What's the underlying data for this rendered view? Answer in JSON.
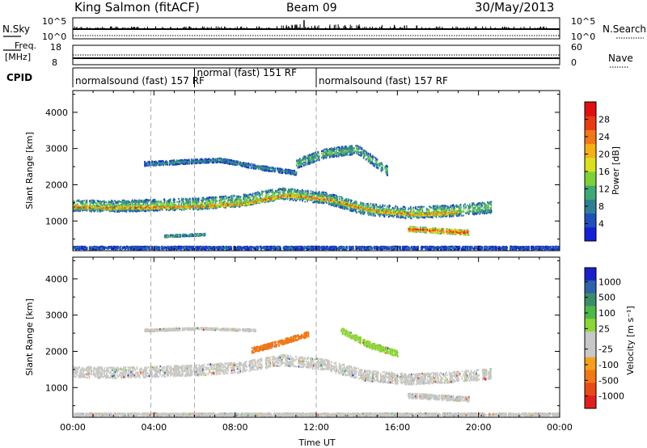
{
  "header": {
    "station": "King Salmon (fitACF)",
    "beam": "Beam 09",
    "date": "30/May/2013"
  },
  "status_panels": {
    "nsky_label": "N.Sky",
    "nsky_ticks": [
      "10^5",
      "10^0"
    ],
    "nsky_right_ticks": [
      "10^5",
      "10^0"
    ],
    "nsearch_label": "N.Search",
    "freq_label_1": "Freq.",
    "freq_label_2": "[MHz]",
    "freq_ticks": [
      "18",
      "8"
    ],
    "nave_ticks": [
      "60",
      "0"
    ],
    "nave_label": "Nave",
    "cpid_label": "CPID",
    "cpid_segments": [
      {
        "start": 0.0,
        "end": 6.0,
        "label": "normalsound (fast) 157 RF"
      },
      {
        "start": 6.0,
        "end": 12.0,
        "label": "normal (fast) 151 RF"
      },
      {
        "start": 12.0,
        "end": 24.0,
        "label": "normalsound (fast) 157 RF"
      }
    ],
    "dashed_times": [
      3.85,
      6.0,
      12.0
    ]
  },
  "chart_data": [
    {
      "type": "heatmap",
      "name": "power",
      "ylabel": "Slant Range [km]",
      "xlim": [
        0,
        24
      ],
      "ylim": [
        180,
        4600
      ],
      "yticks": [
        1000,
        2000,
        3000,
        4000
      ],
      "xticks": [
        "00:00",
        "04:00",
        "08:00",
        "12:00",
        "16:00",
        "20:00",
        "00:00"
      ],
      "colorbar": {
        "label": "Power [dB]",
        "ticks": [
          "4",
          "8",
          "12",
          "16",
          "20",
          "24",
          "28"
        ],
        "colors": [
          "#1420d6",
          "#1f4fb8",
          "#2f7f94",
          "#3fa874",
          "#7fcf3a",
          "#d8e020",
          "#f5b018",
          "#f07818",
          "#e83a14",
          "#e01010"
        ]
      },
      "regions": [
        {
          "t": [
            0.0,
            20.6
          ],
          "r_center": [
            1450,
            1430,
            1460,
            1500,
            1580,
            1780,
            1660,
            1350,
            1250,
            1300,
            1400
          ],
          "width": 320,
          "level": 0.45
        },
        {
          "t": [
            0.0,
            19.0
          ],
          "r_center": [
            1400,
            1380,
            1400,
            1420,
            1500,
            1730,
            1600,
            1300,
            1200,
            1250
          ],
          "width": 90,
          "level": 0.85
        },
        {
          "t": [
            3.5,
            11.0
          ],
          "r_center": [
            2600,
            2650,
            2700,
            2500,
            2350
          ],
          "width": 120,
          "level": 0.3
        },
        {
          "t": [
            11.0,
            15.5
          ],
          "r_center": [
            2600,
            2900,
            3000,
            2400
          ],
          "width": 260,
          "level": 0.4
        },
        {
          "t": [
            16.5,
            19.5
          ],
          "r_center": [
            800,
            750,
            700
          ],
          "width": 140,
          "level": 0.9
        },
        {
          "t": [
            4.5,
            6.5
          ],
          "r_center": [
            600,
            650
          ],
          "width": 60,
          "level": 0.4
        },
        {
          "t": [
            0.0,
            24.0
          ],
          "r_center": [
            280,
            280
          ],
          "width": 80,
          "level": 0.2
        }
      ]
    },
    {
      "type": "heatmap",
      "name": "velocity",
      "ylabel": "Slant Range [km]",
      "xlabel": "Time UT",
      "xlim": [
        0,
        24
      ],
      "ylim": [
        180,
        4600
      ],
      "yticks": [
        1000,
        2000,
        3000,
        4000
      ],
      "xticks": [
        "00:00",
        "04:00",
        "08:00",
        "12:00",
        "16:00",
        "20:00",
        "00:00"
      ],
      "colorbar": {
        "label": "Velocity [m s⁻¹]",
        "ticks": [
          "1000",
          "500",
          "100",
          "25",
          "-25",
          "-100",
          "-500",
          "-1000"
        ],
        "colors": [
          "#1a20c8",
          "#2f62a8",
          "#3b8c6a",
          "#4fb84a",
          "#8fd43a",
          "#c8c8c8",
          "#c8c8c8",
          "#f5a020",
          "#f07818",
          "#e84a18",
          "#e02020"
        ]
      },
      "regions": [
        {
          "t": [
            0.0,
            20.6
          ],
          "r_center": [
            1450,
            1430,
            1460,
            1500,
            1580,
            1780,
            1660,
            1350,
            1250,
            1300,
            1400
          ],
          "width": 300,
          "color": "#c8c8c4"
        },
        {
          "t": [
            8.8,
            11.6
          ],
          "r_center": [
            2050,
            2250,
            2500
          ],
          "width": 150,
          "color": "#f07818"
        },
        {
          "t": [
            13.2,
            16.0
          ],
          "r_center": [
            2600,
            2200,
            1950
          ],
          "width": 170,
          "color": "#8fd43a"
        },
        {
          "t": [
            3.5,
            9.0
          ],
          "r_center": [
            2600,
            2650,
            2600
          ],
          "width": 60,
          "color": "#c8c8c4"
        },
        {
          "t": [
            16.5,
            19.5
          ],
          "r_center": [
            800,
            750,
            700
          ],
          "width": 140,
          "color": "#c8c8c4"
        },
        {
          "t": [
            0.0,
            24.0
          ],
          "r_center": [
            280,
            280
          ],
          "width": 70,
          "color": "#c8c8c4"
        }
      ]
    }
  ]
}
